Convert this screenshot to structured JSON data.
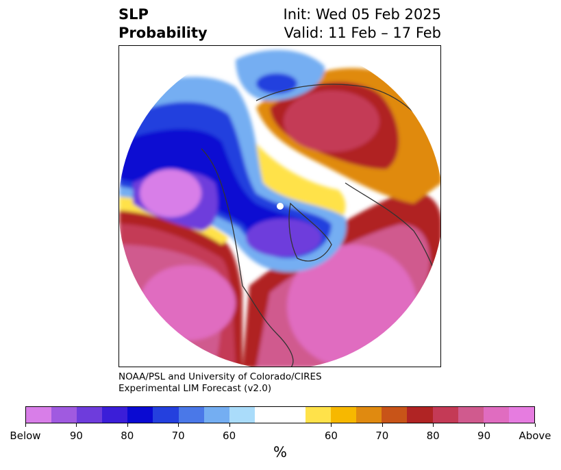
{
  "title": {
    "left_line1": "SLP",
    "left_line2": "Probability",
    "init": "Init: Wed 05 Feb 2025",
    "valid": "Valid: 11 Feb – 17 Feb"
  },
  "credit": {
    "line1": "NOAA/PSL and University of Colorado/CIRES",
    "line2": "Experimental LIM Forecast (v2.0)"
  },
  "colorbar": {
    "unit": "%",
    "colors": [
      "#d87ee8",
      "#a05ae0",
      "#6e3cdc",
      "#3b1ed8",
      "#0a0ad2",
      "#2440de",
      "#4a78e8",
      "#74aef2",
      "#aadcfa",
      "#ffffff",
      "#ffe24a",
      "#f7b800",
      "#e08a10",
      "#c85418",
      "#b02424",
      "#c43a56",
      "#d05a8e",
      "#e06cc0",
      "#e67ce0"
    ],
    "tick_labels": [
      "Below",
      "90",
      "80",
      "70",
      "60",
      "60",
      "70",
      "80",
      "90",
      "Above"
    ]
  },
  "palette": {
    "below_extreme": "#e070e0",
    "below_deep": "#0a0ad2",
    "below_mid": "#6e3cdc",
    "below_light": "#74aef2",
    "neutral": "#ffffff",
    "above_light": "#ffe24a",
    "above_mid": "#e08a10",
    "above_deep": "#b02424",
    "above_extreme": "#e06cc0",
    "coastline": "#333333"
  }
}
